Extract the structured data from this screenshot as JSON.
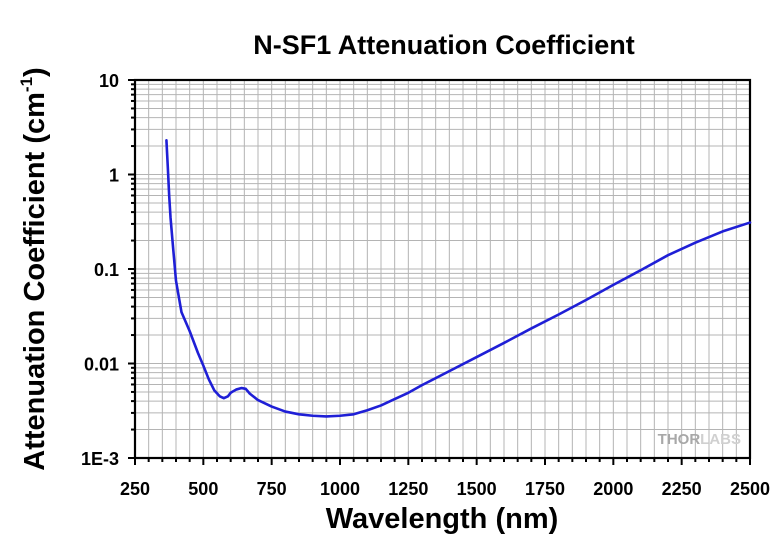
{
  "chart_data": {
    "type": "line",
    "title": "N-SF1 Attenuation Coefficient",
    "xlabel": "Wavelength (nm)",
    "ylabel": "Attenuation Coefficient (cm",
    "ylabel_superscript": "-1",
    "ylabel_close": ")",
    "xlim": [
      250,
      2500
    ],
    "ylim": [
      0.001,
      10
    ],
    "yscale": "log",
    "grid": true,
    "x_ticks": [
      250,
      500,
      750,
      1000,
      1250,
      1500,
      1750,
      2000,
      2250,
      2500
    ],
    "x_tick_labels": [
      "250",
      "500",
      "750",
      "1000",
      "1250",
      "1500",
      "1750",
      "2000",
      "2250",
      "2500"
    ],
    "y_ticks": [
      0.001,
      0.01,
      0.1,
      1,
      10
    ],
    "y_tick_labels": [
      "1E-3",
      "0.01",
      "0.1",
      "1",
      "10"
    ],
    "line_color": "#1f1fd6",
    "series": [
      {
        "x": [
          365,
          370,
          375,
          380,
          390,
          400,
          420,
          450,
          480,
          500,
          520,
          540,
          560,
          575,
          590,
          600,
          620,
          640,
          655,
          670,
          700,
          750,
          800,
          850,
          900,
          950,
          1000,
          1050,
          1100,
          1150,
          1200,
          1250,
          1300,
          1400,
          1500,
          1600,
          1700,
          1800,
          1900,
          2000,
          2100,
          2200,
          2300,
          2400,
          2500
        ],
        "y": [
          2.3,
          1.2,
          0.6,
          0.35,
          0.16,
          0.075,
          0.035,
          0.022,
          0.013,
          0.0095,
          0.0068,
          0.0052,
          0.0045,
          0.0043,
          0.0045,
          0.0049,
          0.0053,
          0.0055,
          0.0054,
          0.0048,
          0.0041,
          0.0035,
          0.0031,
          0.0029,
          0.0028,
          0.00275,
          0.0028,
          0.0029,
          0.0032,
          0.0036,
          0.0042,
          0.0049,
          0.0059,
          0.0083,
          0.0117,
          0.0165,
          0.0235,
          0.033,
          0.047,
          0.068,
          0.097,
          0.14,
          0.19,
          0.25,
          0.31
        ]
      }
    ]
  },
  "watermark": {
    "part1": "THOR",
    "part2": "LABS"
  }
}
